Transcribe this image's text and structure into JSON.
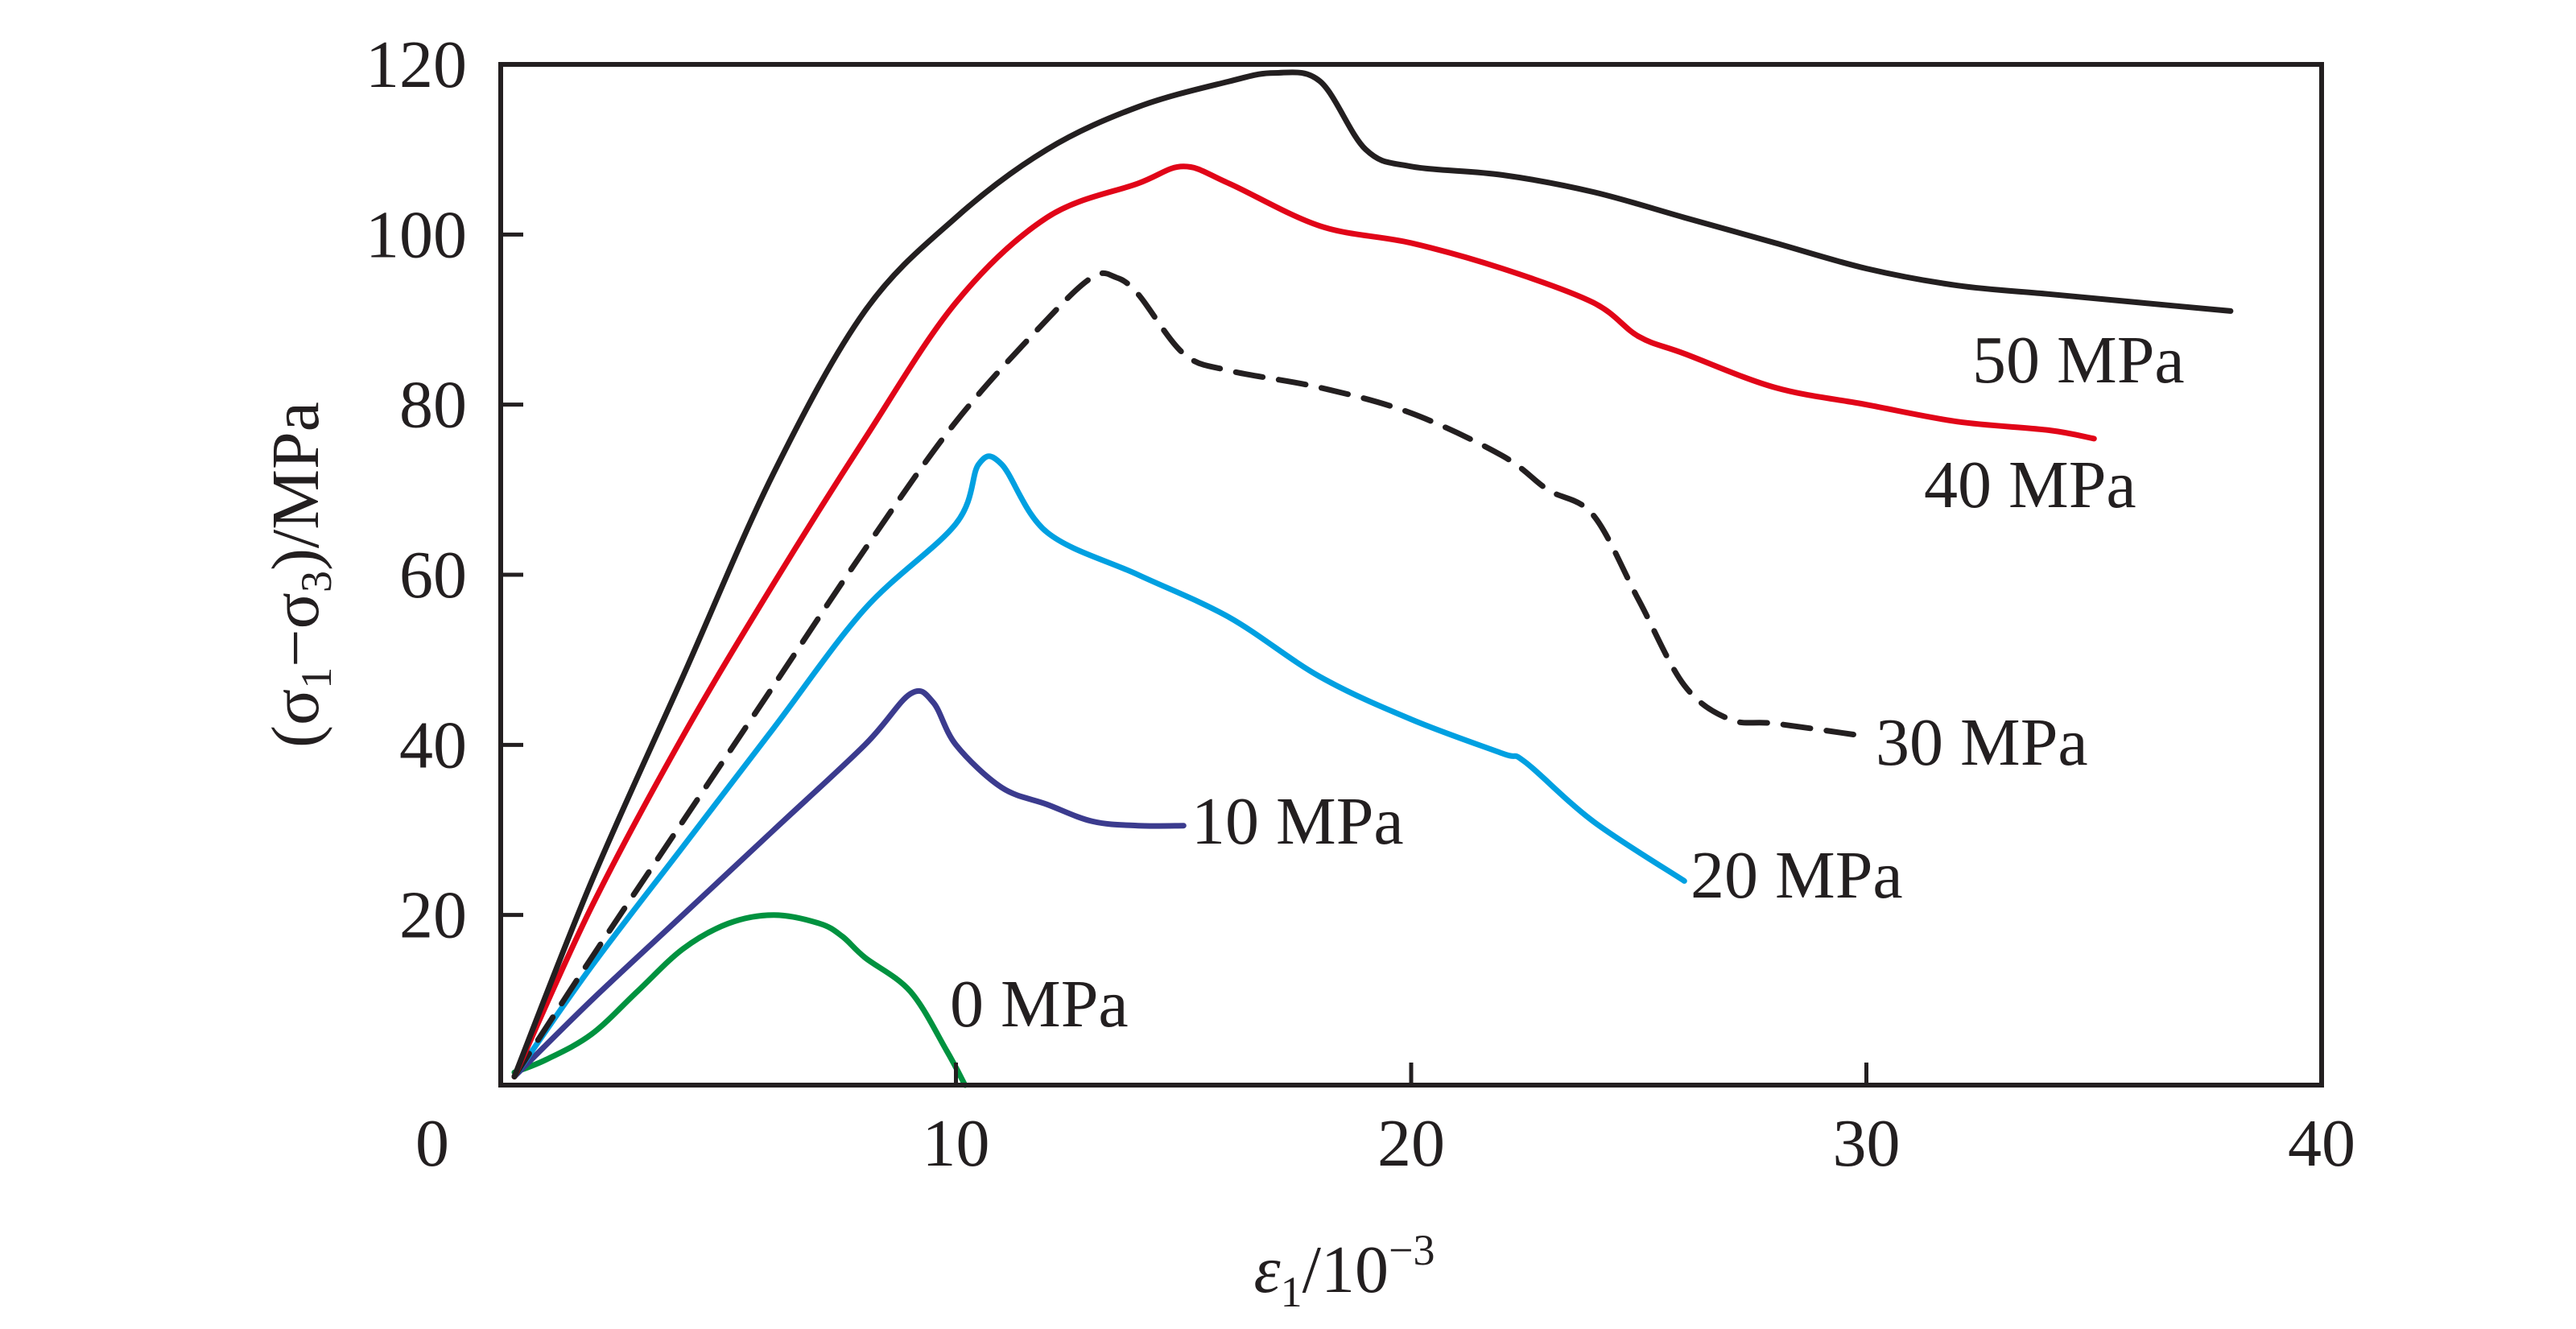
{
  "chart_data": {
    "type": "line",
    "title": "",
    "xlabel": "ε1/10−3",
    "xlabel_parts": {
      "symbol": "ε",
      "sub": "1",
      "rest": "/10",
      "sup": "−3"
    },
    "ylabel": "(σ1−σ3)/MPa",
    "ylabel_parts": {
      "open": "(σ",
      "sub1": "1",
      "mid": "−σ",
      "sub3": "3",
      "close": ")/MPa"
    },
    "xlim": [
      0,
      40
    ],
    "ylim": [
      0,
      120
    ],
    "xticks": [
      "0",
      "10",
      "20",
      "30",
      "40"
    ],
    "xtick_values": [
      0,
      10,
      20,
      30,
      40
    ],
    "yticks": [
      "20",
      "40",
      "60",
      "80",
      "100",
      "120"
    ],
    "ytick_values": [
      20,
      40,
      60,
      80,
      100,
      120
    ],
    "grid": false,
    "legend": "none",
    "series": [
      {
        "name": "0 MPa",
        "color": "#00923f",
        "dash": "solid",
        "x": [
          0.3,
          1,
          2,
          3,
          4,
          5,
          6,
          7,
          7.5,
          8,
          9,
          9.8,
          10.2
        ],
        "y": [
          1.5,
          3,
          6,
          11,
          16,
          19,
          20,
          19,
          17.5,
          15,
          11,
          4,
          0
        ]
      },
      {
        "name": "10 MPa",
        "color": "#3b3b8e",
        "dash": "solid",
        "x": [
          0.3,
          2,
          4,
          6,
          8,
          9,
          9.5,
          10,
          11,
          12,
          13,
          14,
          15
        ],
        "y": [
          1,
          10,
          20,
          30,
          40,
          46,
          45,
          40,
          35,
          33,
          31,
          30.5,
          30.5
        ]
      },
      {
        "name": "20 MPa",
        "color": "#00a0e1",
        "dash": "solid",
        "x": [
          0.3,
          2,
          4,
          6,
          8,
          10,
          10.5,
          11,
          12,
          14,
          16,
          18,
          20,
          22,
          22.5,
          24,
          26
        ],
        "y": [
          1,
          14,
          28,
          42,
          56,
          66,
          73,
          73,
          65,
          60,
          55,
          48,
          43,
          39,
          38,
          31,
          24
        ]
      },
      {
        "name": "30 MPa",
        "color": "#231f20",
        "dash": "dashed",
        "x": [
          0.3,
          2,
          4,
          6,
          8,
          10,
          12,
          13,
          13.5,
          14,
          15,
          16,
          18,
          20,
          22,
          23,
          24,
          25,
          26,
          27,
          28,
          30
        ],
        "y": [
          1,
          15,
          31,
          47,
          63,
          78,
          90,
          95,
          95,
          93,
          86,
          84,
          82,
          79,
          74,
          70,
          67,
          57,
          47,
          43,
          42.5,
          41
        ]
      },
      {
        "name": "40 MPa",
        "color": "#e10518",
        "dash": "solid",
        "x": [
          0.3,
          2,
          4,
          6,
          8,
          10,
          12,
          14,
          15,
          16,
          18,
          20,
          22,
          24,
          25,
          26,
          28,
          30,
          32,
          34,
          35
        ],
        "y": [
          1,
          21,
          41,
          59,
          76,
          92,
          102,
          106,
          108,
          106,
          101,
          99,
          96,
          92,
          88,
          86,
          82,
          80,
          78,
          77,
          76
        ]
      },
      {
        "name": "50 MPa",
        "color": "#231f20",
        "dash": "solid",
        "x": [
          0.3,
          2,
          4,
          6,
          8,
          10,
          12,
          14,
          16,
          17,
          18,
          19,
          20,
          22,
          24,
          26,
          28,
          30,
          32,
          34,
          36,
          38
        ],
        "y": [
          1,
          24,
          48,
          72,
          91,
          102,
          110,
          115,
          118,
          119,
          118,
          110,
          108,
          107,
          105,
          102,
          99,
          96,
          94,
          93,
          92,
          91
        ]
      }
    ]
  }
}
